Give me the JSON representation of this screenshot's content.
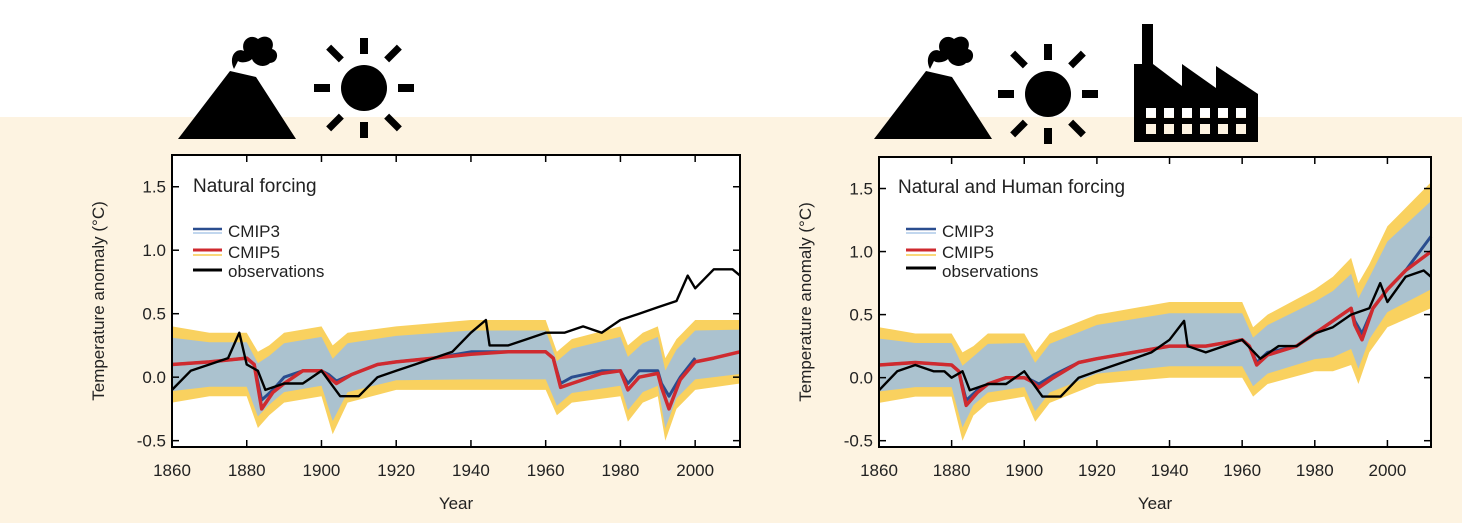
{
  "colors": {
    "background": "#fdf3e1",
    "cmip3": "#2a4d8f",
    "cmip3_runs": "#9dbfe3",
    "cmip5": "#cf2a2f",
    "cmip5_runs": "#f7c129",
    "observations": "#000000",
    "icons": "#000000"
  },
  "icons": {
    "left": [
      "volcano-icon",
      "sun-icon"
    ],
    "right": [
      "volcano-icon",
      "sun-icon",
      "factory-icon"
    ]
  },
  "chart_data": [
    {
      "type": "line",
      "title": "Natural forcing",
      "xlabel": "Year",
      "ylabel": "Temperature anomaly (°C)",
      "xlim": [
        1860,
        2012
      ],
      "ylim": [
        -0.55,
        1.75
      ],
      "xticks": [
        1860,
        1880,
        1900,
        1920,
        1940,
        1960,
        1980,
        2000
      ],
      "yticks": [
        -0.5,
        0.0,
        0.5,
        1.0,
        1.5
      ],
      "ytick_labels": [
        "-0.5",
        "0.0",
        "0.5",
        "1.0",
        "1.5"
      ],
      "legend": {
        "position": "top-left",
        "entries": [
          "CMIP3",
          "CMIP5",
          "observations"
        ]
      },
      "model_spread": {
        "x": [
          1860,
          1870,
          1880,
          1883,
          1886,
          1890,
          1900,
          1903,
          1907,
          1920,
          1940,
          1960,
          1963,
          1967,
          1980,
          1982,
          1986,
          1990,
          1992,
          1995,
          2000,
          2012
        ],
        "low": [
          -0.2,
          -0.15,
          -0.15,
          -0.4,
          -0.3,
          -0.2,
          -0.15,
          -0.45,
          -0.2,
          -0.1,
          -0.1,
          -0.1,
          -0.3,
          -0.2,
          -0.15,
          -0.35,
          -0.2,
          -0.15,
          -0.5,
          -0.25,
          -0.1,
          -0.05
        ],
        "high": [
          0.4,
          0.35,
          0.35,
          0.2,
          0.25,
          0.35,
          0.4,
          0.25,
          0.35,
          0.4,
          0.45,
          0.45,
          0.2,
          0.3,
          0.4,
          0.25,
          0.35,
          0.4,
          0.15,
          0.3,
          0.45,
          0.45
        ]
      },
      "series": [
        {
          "name": "CMIP3",
          "x": [
            1860,
            1870,
            1880,
            1882,
            1884,
            1887,
            1890,
            1895,
            1900,
            1902,
            1904,
            1908,
            1915,
            1920,
            1930,
            1940,
            1950,
            1960,
            1962,
            1964,
            1967,
            1975,
            1980,
            1982,
            1985,
            1990,
            1991,
            1993,
            1996,
            2000
          ],
          "y": [
            0.1,
            0.12,
            0.15,
            0.1,
            -0.18,
            -0.1,
            0.0,
            0.05,
            0.05,
            0.02,
            -0.03,
            0.02,
            0.1,
            0.12,
            0.15,
            0.2,
            0.2,
            0.2,
            0.15,
            -0.05,
            0.0,
            0.05,
            0.05,
            -0.05,
            0.05,
            0.05,
            -0.05,
            -0.15,
            0.0,
            0.15
          ]
        },
        {
          "name": "CMIP5",
          "x": [
            1860,
            1870,
            1880,
            1882,
            1884,
            1887,
            1890,
            1895,
            1900,
            1902,
            1904,
            1908,
            1915,
            1920,
            1930,
            1940,
            1950,
            1960,
            1962,
            1964,
            1967,
            1975,
            1980,
            1982,
            1985,
            1990,
            1991,
            1993,
            1996,
            2000,
            2005,
            2012
          ],
          "y": [
            0.1,
            0.12,
            0.15,
            0.1,
            -0.25,
            -0.12,
            -0.05,
            0.05,
            0.05,
            0.0,
            -0.05,
            0.02,
            0.1,
            0.12,
            0.15,
            0.18,
            0.2,
            0.2,
            0.15,
            -0.08,
            -0.05,
            0.03,
            0.05,
            -0.1,
            0.0,
            0.03,
            -0.08,
            -0.25,
            -0.02,
            0.12,
            0.15,
            0.2
          ]
        },
        {
          "name": "observations",
          "x": [
            1860,
            1865,
            1870,
            1875,
            1878,
            1880,
            1883,
            1885,
            1890,
            1895,
            1900,
            1905,
            1910,
            1915,
            1920,
            1925,
            1930,
            1935,
            1940,
            1944,
            1945,
            1950,
            1955,
            1960,
            1965,
            1970,
            1975,
            1980,
            1985,
            1990,
            1995,
            1998,
            2000,
            2005,
            2010,
            2012
          ],
          "y": [
            -0.1,
            0.05,
            0.1,
            0.15,
            0.35,
            0.1,
            0.05,
            -0.1,
            -0.05,
            -0.05,
            0.05,
            -0.15,
            -0.15,
            0.0,
            0.05,
            0.1,
            0.15,
            0.2,
            0.35,
            0.45,
            0.25,
            0.25,
            0.3,
            0.35,
            0.35,
            0.4,
            0.35,
            0.45,
            0.5,
            0.55,
            0.6,
            0.8,
            0.7,
            0.85,
            0.85,
            0.8
          ]
        }
      ]
    },
    {
      "type": "line",
      "title": "Natural and Human forcing",
      "xlabel": "Year",
      "ylabel": "Temperature anomaly (°C)",
      "xlim": [
        1860,
        2012
      ],
      "ylim": [
        -0.55,
        1.75
      ],
      "xticks": [
        1860,
        1880,
        1900,
        1920,
        1940,
        1960,
        1980,
        2000
      ],
      "yticks": [
        -0.5,
        0.0,
        0.5,
        1.0,
        1.5
      ],
      "ytick_labels": [
        "-0.5",
        "0.0",
        "0.5",
        "1.0",
        "1.5"
      ],
      "legend": {
        "position": "top-left",
        "entries": [
          "CMIP3",
          "CMIP5",
          "observations"
        ]
      },
      "model_spread": {
        "x": [
          1860,
          1870,
          1880,
          1883,
          1886,
          1890,
          1900,
          1903,
          1907,
          1920,
          1940,
          1960,
          1963,
          1967,
          1980,
          1985,
          1990,
          1992,
          1995,
          2000,
          2012
        ],
        "low": [
          -0.2,
          -0.15,
          -0.15,
          -0.5,
          -0.3,
          -0.2,
          -0.15,
          -0.35,
          -0.2,
          -0.05,
          0.0,
          0.0,
          -0.15,
          -0.05,
          0.05,
          0.05,
          0.1,
          -0.05,
          0.2,
          0.4,
          0.55
        ],
        "high": [
          0.4,
          0.35,
          0.35,
          0.2,
          0.25,
          0.35,
          0.35,
          0.2,
          0.35,
          0.5,
          0.6,
          0.6,
          0.4,
          0.5,
          0.7,
          0.8,
          0.95,
          0.75,
          0.9,
          1.2,
          1.55
        ]
      },
      "series": [
        {
          "name": "CMIP3",
          "x": [
            1860,
            1870,
            1880,
            1882,
            1884,
            1887,
            1890,
            1895,
            1900,
            1902,
            1904,
            1908,
            1915,
            1920,
            1930,
            1940,
            1950,
            1960,
            1962,
            1964,
            1967,
            1975,
            1980,
            1985,
            1990,
            1991,
            1993,
            1996,
            2000,
            2005,
            2012
          ],
          "y": [
            0.1,
            0.12,
            0.1,
            0.05,
            -0.18,
            -0.1,
            -0.05,
            0.0,
            0.0,
            -0.02,
            -0.05,
            0.02,
            0.12,
            0.15,
            0.2,
            0.25,
            0.25,
            0.3,
            0.25,
            0.12,
            0.2,
            0.25,
            0.35,
            0.45,
            0.55,
            0.45,
            0.35,
            0.55,
            0.7,
            0.85,
            1.12
          ]
        },
        {
          "name": "CMIP5",
          "x": [
            1860,
            1870,
            1880,
            1882,
            1884,
            1887,
            1890,
            1895,
            1900,
            1902,
            1904,
            1908,
            1915,
            1920,
            1930,
            1940,
            1950,
            1960,
            1962,
            1964,
            1967,
            1975,
            1980,
            1985,
            1990,
            1991,
            1993,
            1996,
            2000,
            2005,
            2012
          ],
          "y": [
            0.1,
            0.12,
            0.1,
            0.05,
            -0.22,
            -0.12,
            -0.05,
            0.0,
            0.0,
            -0.03,
            -0.08,
            0.0,
            0.12,
            0.15,
            0.2,
            0.25,
            0.25,
            0.3,
            0.25,
            0.1,
            0.18,
            0.25,
            0.35,
            0.45,
            0.55,
            0.42,
            0.3,
            0.55,
            0.7,
            0.85,
            1.0
          ]
        },
        {
          "name": "observations",
          "x": [
            1860,
            1865,
            1870,
            1875,
            1878,
            1880,
            1883,
            1885,
            1890,
            1895,
            1900,
            1905,
            1910,
            1915,
            1920,
            1925,
            1930,
            1935,
            1940,
            1944,
            1945,
            1950,
            1955,
            1960,
            1965,
            1970,
            1975,
            1980,
            1985,
            1990,
            1995,
            1998,
            2000,
            2005,
            2010,
            2012
          ],
          "y": [
            -0.1,
            0.05,
            0.1,
            0.05,
            0.05,
            0.0,
            0.05,
            -0.1,
            -0.05,
            -0.05,
            0.05,
            -0.15,
            -0.15,
            0.0,
            0.05,
            0.1,
            0.15,
            0.2,
            0.3,
            0.45,
            0.25,
            0.2,
            0.25,
            0.3,
            0.15,
            0.25,
            0.25,
            0.35,
            0.4,
            0.5,
            0.55,
            0.75,
            0.6,
            0.8,
            0.85,
            0.8
          ]
        }
      ]
    }
  ]
}
